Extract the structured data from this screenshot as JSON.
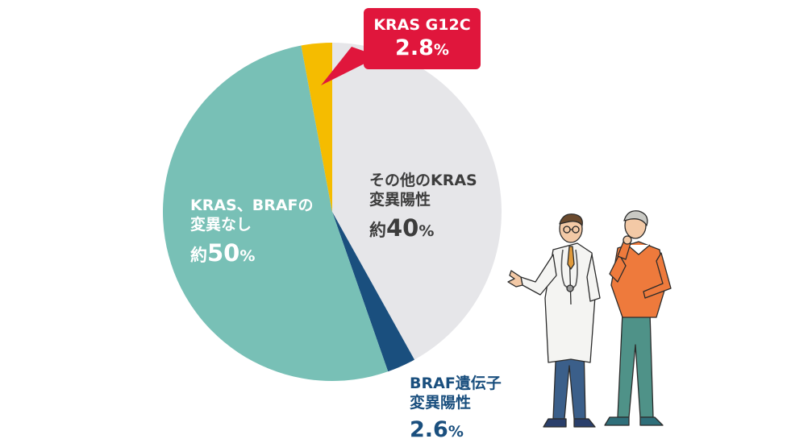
{
  "chart_data": {
    "type": "pie",
    "start_angle_deg": 0,
    "direction": "clockwise",
    "slices": [
      {
        "key": "other",
        "label_lines": [
          "その他のKRAS",
          "変異陽性"
        ],
        "prefix": "約",
        "value": 40,
        "unit": "%",
        "color": "#e6e6e9"
      },
      {
        "key": "braf",
        "label_lines": [
          "BRAF遺伝子",
          "変異陽性"
        ],
        "value": 2.6,
        "unit": "%",
        "color": "#1a4f7e"
      },
      {
        "key": "none",
        "label_lines": [
          "KRAS、BRAFの",
          "変異なし"
        ],
        "prefix": "約",
        "value": 50,
        "unit": "%",
        "color": "#78c0b6"
      },
      {
        "key": "g12c",
        "label_lines": [
          "KRAS G12C"
        ],
        "value": 2.8,
        "unit": "%",
        "color": "#f5bc00"
      }
    ],
    "callout": {
      "slice": "g12c",
      "line1": "KRAS G12C",
      "value": "2.8",
      "unit": "%",
      "color": "#e0163c"
    }
  },
  "illustration": {
    "description_icon": "doctor-and-patient-illustration",
    "colors": {
      "coat": "#f4f4f2",
      "doctor_trousers": "#3b5f8a",
      "sweater": "#ee7a3c",
      "patient_trousers": "#4f9288",
      "shoes_doctor": "#2a3f6b",
      "shoes_patient": "#2f6f7a",
      "skin": "#f3c9a6"
    }
  }
}
